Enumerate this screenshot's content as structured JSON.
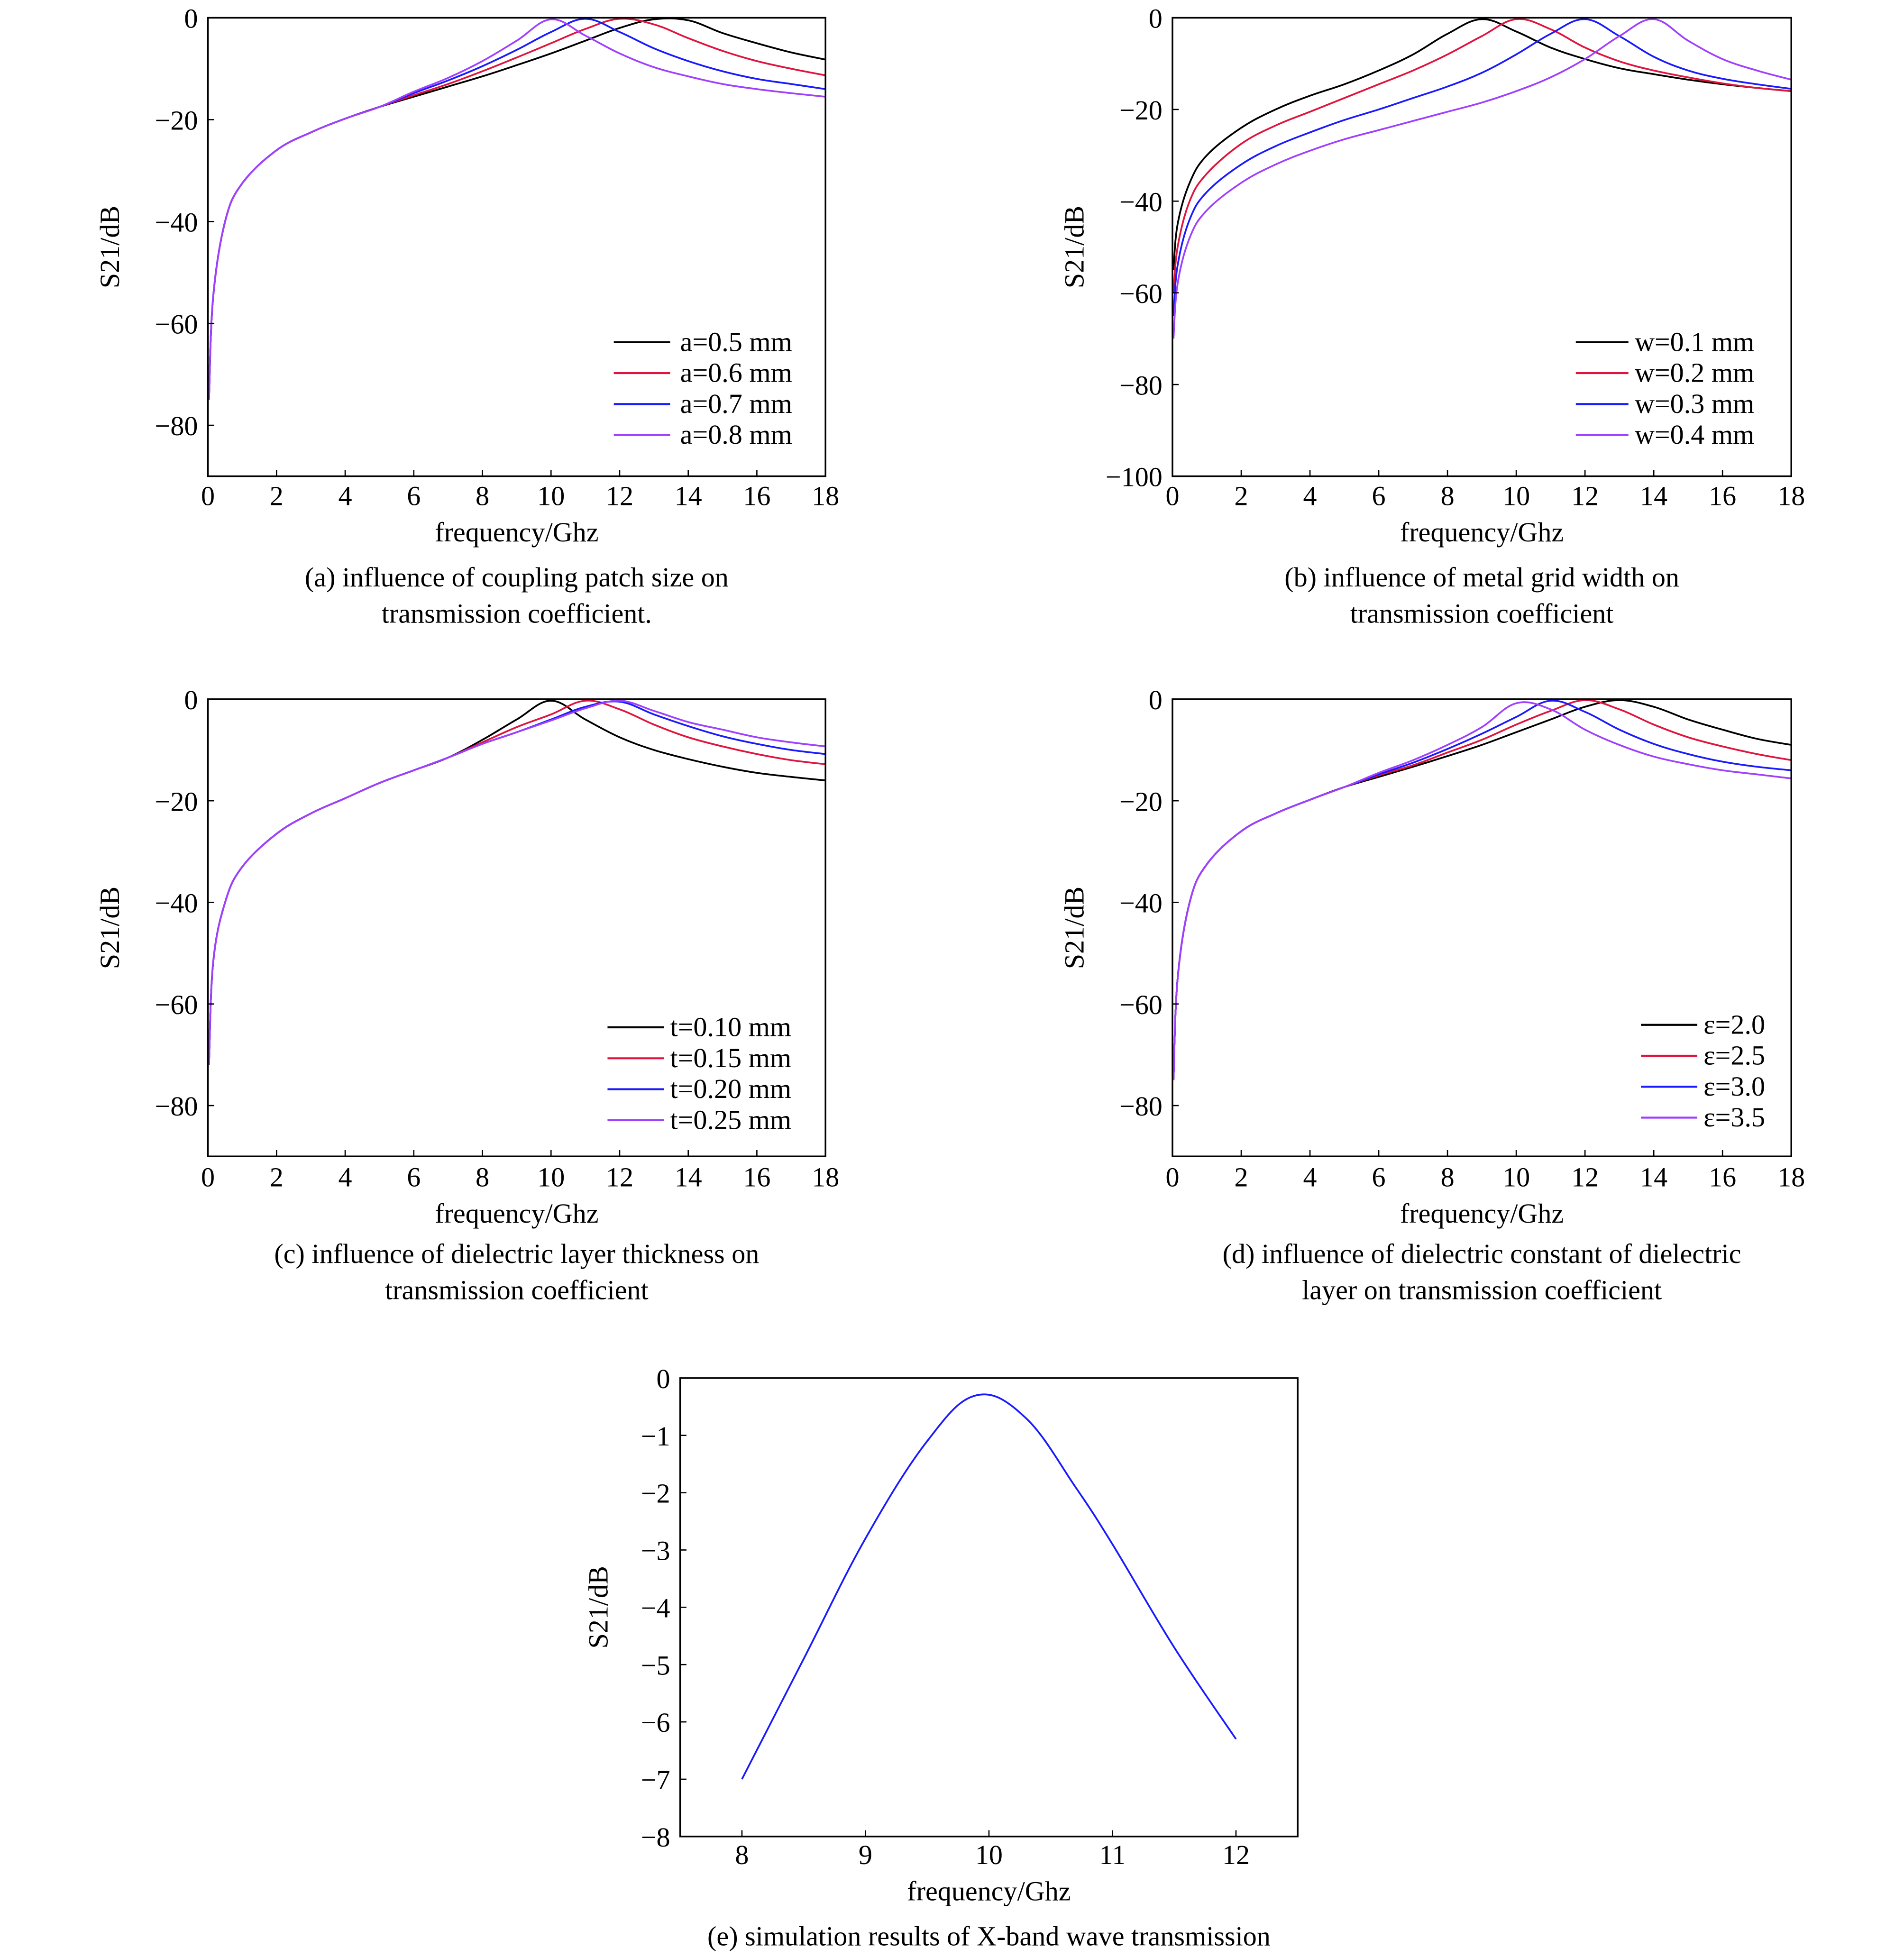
{
  "chart_data": [
    {
      "id": "a",
      "type": "line",
      "caption": [
        "(a) influence of coupling patch size on",
        "transmission coefficient."
      ],
      "xlabel": "frequency/Ghz",
      "ylabel": "S21/dB",
      "xlim": [
        0,
        18
      ],
      "ylim": [
        -90,
        0
      ],
      "xticks": [
        0,
        2,
        4,
        6,
        8,
        10,
        12,
        14,
        16,
        18
      ],
      "yticks": [
        0,
        -20,
        -40,
        -60,
        -80
      ],
      "legend": "bottom-right",
      "x": [
        0.03,
        0.15,
        0.5,
        1,
        2,
        3,
        4,
        5,
        6,
        7,
        8,
        9,
        10,
        11,
        12,
        13,
        14,
        15,
        16,
        17,
        18
      ],
      "series": [
        {
          "name": "a=0.5 mm",
          "color": "#000000",
          "y": [
            -75,
            -55,
            -40,
            -32.5,
            -26,
            -22.5,
            -19.8,
            -17.5,
            -15.5,
            -13.5,
            -11.5,
            -9.3,
            -7,
            -4.5,
            -2,
            -0.3,
            -0.5,
            -3,
            -5,
            -6.8,
            -8.2
          ]
        },
        {
          "name": "a=0.6 mm",
          "color": "#e0143c",
          "y": [
            -75,
            -55,
            -40,
            -32.5,
            -26,
            -22.5,
            -19.8,
            -17.5,
            -15.2,
            -13,
            -10.5,
            -7.8,
            -5,
            -2.2,
            -0.2,
            -1.3,
            -4,
            -6.5,
            -8.5,
            -10,
            -11.3
          ]
        },
        {
          "name": "a=0.7 mm",
          "color": "#1a1aff",
          "y": [
            -75,
            -55,
            -40,
            -32.5,
            -26,
            -22.5,
            -19.8,
            -17.5,
            -14.8,
            -12.3,
            -9.5,
            -6.3,
            -2.8,
            -0.2,
            -2.8,
            -6,
            -8.5,
            -10.5,
            -12,
            -13,
            -14
          ]
        },
        {
          "name": "a=0.8 mm",
          "color": "#a040ff",
          "y": [
            -75,
            -55,
            -40,
            -32.5,
            -26,
            -22.5,
            -19.8,
            -17.5,
            -14.5,
            -11.8,
            -8.5,
            -4.5,
            -0.3,
            -3.5,
            -7,
            -9.7,
            -11.5,
            -13,
            -14,
            -14.8,
            -15.5
          ]
        }
      ]
    },
    {
      "id": "b",
      "type": "line",
      "caption": [
        "(b) influence of metal grid width on",
        "transmission coefficient"
      ],
      "xlabel": "frequency/Ghz",
      "ylabel": "S21/dB",
      "xlim": [
        0,
        18
      ],
      "ylim": [
        -100,
        0
      ],
      "xticks": [
        0,
        2,
        4,
        6,
        8,
        10,
        12,
        14,
        16,
        18
      ],
      "yticks": [
        0,
        -20,
        -40,
        -60,
        -80,
        -100
      ],
      "legend": "bottom-right",
      "x": [
        0.03,
        0.15,
        0.5,
        1,
        2,
        3,
        4,
        5,
        6,
        7,
        8,
        9,
        10,
        11,
        12,
        13,
        14,
        15,
        16,
        17,
        18
      ],
      "series": [
        {
          "name": "w=0.1 mm",
          "color": "#000000",
          "y": [
            -55,
            -45,
            -36,
            -30,
            -24,
            -20,
            -17,
            -14.5,
            -11.5,
            -8,
            -3.5,
            -0.3,
            -3,
            -6.5,
            -9,
            -11,
            -12.3,
            -13.5,
            -14.5,
            -15.3,
            -16
          ]
        },
        {
          "name": "w=0.2 mm",
          "color": "#e0143c",
          "y": [
            -60,
            -50,
            -40,
            -34,
            -27.5,
            -23.5,
            -20.5,
            -17.5,
            -14.5,
            -11.5,
            -8,
            -4,
            -0.3,
            -2.5,
            -6.5,
            -9.5,
            -11.5,
            -13,
            -14.3,
            -15.3,
            -16
          ]
        },
        {
          "name": "w=0.3 mm",
          "color": "#1a1aff",
          "y": [
            -65,
            -54,
            -44,
            -38,
            -32,
            -28,
            -25,
            -22.3,
            -20,
            -17.5,
            -15,
            -12,
            -8,
            -3.5,
            -0.3,
            -4,
            -8.5,
            -11.5,
            -13.3,
            -14.5,
            -15.5
          ]
        },
        {
          "name": "w=0.4 mm",
          "color": "#a040ff",
          "y": [
            -70,
            -58,
            -48,
            -42,
            -36,
            -32,
            -29,
            -26.5,
            -24.5,
            -22.5,
            -20.5,
            -18.5,
            -16,
            -13,
            -9,
            -4,
            -0.3,
            -5,
            -9,
            -11.5,
            -13.5
          ]
        }
      ]
    },
    {
      "id": "c",
      "type": "line",
      "caption": [
        "(c) influence of dielectric layer thickness on",
        "transmission coefficient"
      ],
      "xlabel": "frequency/Ghz",
      "ylabel": "S21/dB",
      "xlim": [
        0,
        18
      ],
      "ylim": [
        -90,
        0
      ],
      "xticks": [
        0,
        2,
        4,
        6,
        8,
        10,
        12,
        14,
        16,
        18
      ],
      "yticks": [
        0,
        -20,
        -40,
        -60,
        -80
      ],
      "legend": "bottom-right",
      "x": [
        0.03,
        0.15,
        0.5,
        1,
        2,
        3,
        4,
        5,
        6,
        7,
        8,
        9,
        10,
        11,
        12,
        13,
        14,
        15,
        16,
        17,
        18
      ],
      "series": [
        {
          "name": "t=0.10 mm",
          "color": "#000000",
          "y": [
            -72,
            -52,
            -40,
            -33,
            -26.5,
            -22.5,
            -19.5,
            -16.5,
            -14,
            -11.5,
            -8,
            -4,
            -0.3,
            -4,
            -7.5,
            -10,
            -11.8,
            -13.3,
            -14.5,
            -15.3,
            -16
          ]
        },
        {
          "name": "t=0.15 mm",
          "color": "#e0143c",
          "y": [
            -72,
            -52,
            -40,
            -33,
            -26.5,
            -22.5,
            -19.5,
            -16.5,
            -14,
            -11.5,
            -8.5,
            -5.5,
            -3,
            -0.3,
            -2,
            -5,
            -7.5,
            -9.3,
            -10.8,
            -12,
            -12.8
          ]
        },
        {
          "name": "t=0.20 mm",
          "color": "#1a1aff",
          "y": [
            -72,
            -52,
            -40,
            -33,
            -26.5,
            -22.5,
            -19.5,
            -16.5,
            -14,
            -11.5,
            -8.8,
            -6.5,
            -4,
            -1.5,
            -0.5,
            -3,
            -5.3,
            -7.3,
            -8.8,
            -10,
            -10.8
          ]
        },
        {
          "name": "t=0.25 mm",
          "color": "#a040ff",
          "y": [
            -72,
            -52,
            -40,
            -33,
            -26.5,
            -22.5,
            -19.5,
            -16.5,
            -14,
            -11.5,
            -8.8,
            -6.5,
            -4.2,
            -1.8,
            -0.3,
            -2.3,
            -4.5,
            -6,
            -7.5,
            -8.5,
            -9.3
          ]
        }
      ]
    },
    {
      "id": "d",
      "type": "line",
      "caption": [
        "(d) influence of dielectric constant of dielectric",
        "layer on transmission coefficient"
      ],
      "xlabel": "frequency/Ghz",
      "ylabel": "S21/dB",
      "xlim": [
        0,
        18
      ],
      "ylim": [
        -90,
        0
      ],
      "xticks": [
        0,
        2,
        4,
        6,
        8,
        10,
        12,
        14,
        16,
        18
      ],
      "yticks": [
        0,
        -20,
        -40,
        -60,
        -80
      ],
      "legend": "bottom-right",
      "x": [
        0.03,
        0.15,
        0.5,
        1,
        2,
        3,
        4,
        5,
        6,
        7,
        8,
        9,
        10,
        11,
        12,
        13,
        14,
        15,
        16,
        17,
        18
      ],
      "series": [
        {
          "name": "ε=2.0",
          "color": "#000000",
          "y": [
            -75,
            -55,
            -40,
            -32.5,
            -26,
            -22.5,
            -19.8,
            -17.3,
            -15.3,
            -13.3,
            -11.2,
            -9,
            -6.5,
            -4,
            -1.5,
            -0.2,
            -1.5,
            -4,
            -6,
            -7.8,
            -9
          ]
        },
        {
          "name": "ε=2.5",
          "color": "#e0143c",
          "y": [
            -75,
            -55,
            -40,
            -32.5,
            -26,
            -22.5,
            -19.8,
            -17.3,
            -15,
            -13,
            -10.5,
            -8,
            -5,
            -2.3,
            -0.2,
            -2,
            -5,
            -7.5,
            -9.3,
            -10.8,
            -12
          ]
        },
        {
          "name": "ε=3.0",
          "color": "#1a1aff",
          "y": [
            -75,
            -55,
            -40,
            -32.5,
            -26,
            -22.5,
            -19.8,
            -17.3,
            -14.8,
            -12.5,
            -9.8,
            -6.8,
            -3.5,
            -0.3,
            -2.5,
            -6,
            -8.8,
            -10.8,
            -12.3,
            -13.3,
            -14
          ]
        },
        {
          "name": "ε=3.5",
          "color": "#a040ff",
          "y": [
            -75,
            -55,
            -40,
            -32.5,
            -26,
            -22.5,
            -19.8,
            -17.3,
            -14.5,
            -12,
            -9,
            -5.5,
            -0.8,
            -2,
            -6,
            -9,
            -11.3,
            -12.8,
            -14,
            -14.8,
            -15.6
          ]
        }
      ]
    },
    {
      "id": "e",
      "type": "line",
      "caption": [
        "(e) simulation results of X-band wave transmission"
      ],
      "xlabel": "frequency/Ghz",
      "ylabel": "S21/dB",
      "xlim": [
        7.5,
        12.5
      ],
      "ylim": [
        -8,
        0
      ],
      "xticks": [
        8,
        9,
        10,
        11,
        12
      ],
      "yticks": [
        0,
        -1,
        -2,
        -3,
        -4,
        -5,
        -6,
        -7,
        -8
      ],
      "legend": "none",
      "x": [
        8,
        8.5,
        9,
        9.5,
        9.9,
        10.3,
        10.7,
        11,
        11.5,
        12
      ],
      "series": [
        {
          "name": "S21",
          "color": "#1a1aff",
          "y": [
            -7,
            -4.9,
            -2.8,
            -1.1,
            -0.3,
            -0.7,
            -1.9,
            -2.9,
            -4.7,
            -6.3
          ]
        }
      ]
    }
  ]
}
